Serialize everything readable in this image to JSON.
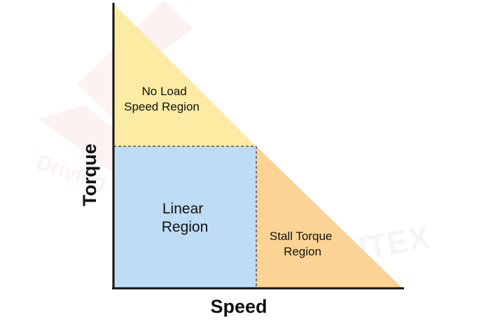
{
  "axes": {
    "x_label": "Speed",
    "y_label": "Torque"
  },
  "regions": {
    "no_load": {
      "line1": "No Load",
      "line2": "Speed Region"
    },
    "linear": {
      "line1": "Linear",
      "line2": "Region"
    },
    "stall": {
      "line1": "Stall Torque",
      "line2": "Region"
    }
  },
  "watermark": {
    "left_text": "Driving",
    "right_text": "UTEX"
  },
  "colors": {
    "no_load_fill": "#FCEBA3",
    "linear_fill": "#BEDDF5",
    "stall_fill": "#FAD395",
    "axis": "#111111",
    "divider": "#555555",
    "watermark": "#E86A6A"
  }
}
